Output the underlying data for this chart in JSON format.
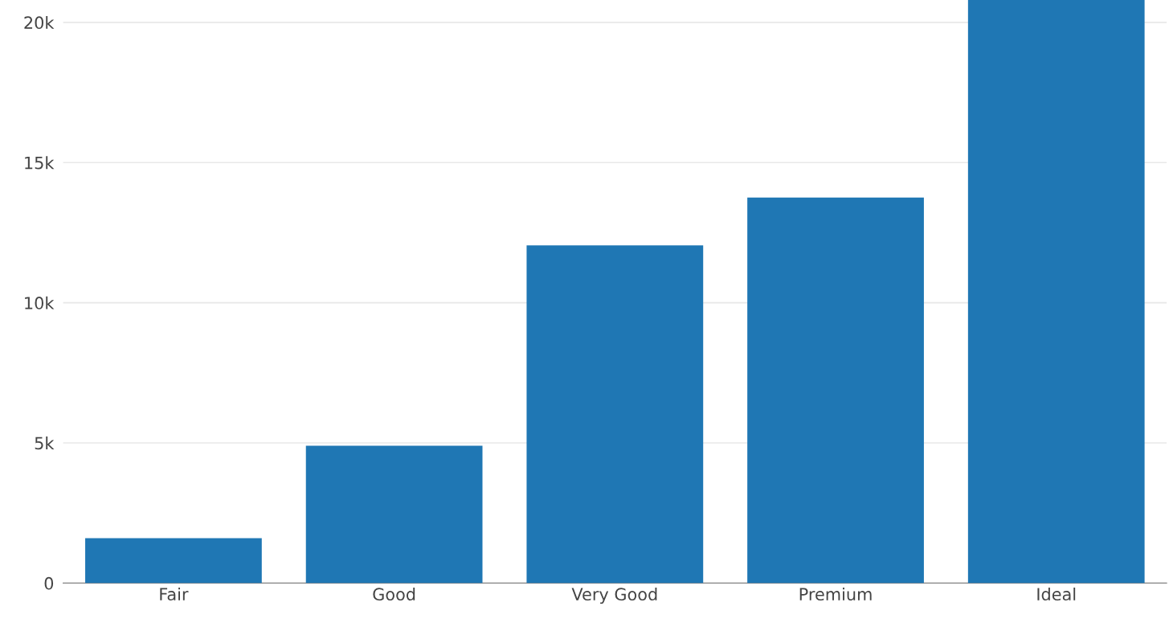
{
  "chart_data": {
    "type": "bar",
    "categories": [
      "Fair",
      "Good",
      "Very Good",
      "Premium",
      "Ideal"
    ],
    "values": [
      1600,
      4900,
      12050,
      13750,
      20800
    ],
    "color": "#1f77b4",
    "ylim": [
      0,
      20800
    ],
    "yticks": [
      0,
      {
        "value": 5000,
        "label": "5k"
      },
      {
        "value": 10000,
        "label": "10k"
      },
      {
        "value": 15000,
        "label": "15k"
      },
      {
        "value": 20000,
        "label": "20k"
      }
    ],
    "grid": "y"
  }
}
